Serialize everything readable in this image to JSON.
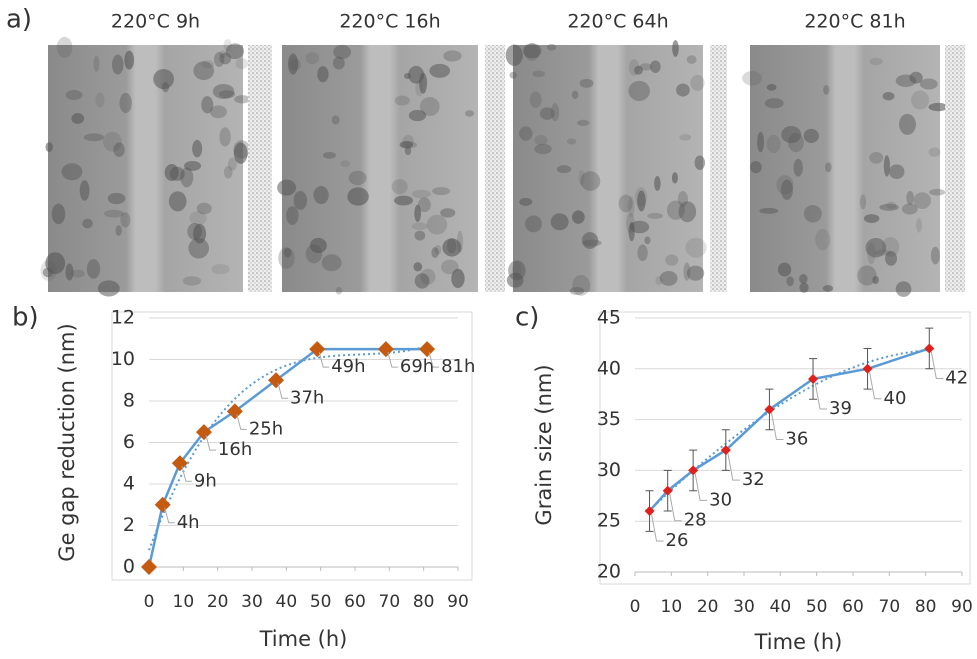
{
  "panel_a": {
    "label": "a)",
    "images": [
      {
        "title": "220°C 9h"
      },
      {
        "title": "220°C 16h"
      },
      {
        "title": "220°C 64h"
      },
      {
        "title": "220°C 81h"
      }
    ]
  },
  "chart_data": [
    {
      "type": "line",
      "label": "b)",
      "x_label": "Time (h)",
      "y_label": "Ge gap reduction (nm)",
      "x": [
        0,
        4,
        9,
        16,
        25,
        37,
        49,
        69,
        81
      ],
      "values": [
        0,
        3,
        5,
        6.5,
        7.5,
        9,
        10.5,
        10.5,
        10.5
      ],
      "point_labels": [
        null,
        "4h",
        "9h",
        "16h",
        "25h",
        "37h",
        "49h",
        "69h",
        "81h"
      ],
      "color": "#5b9bd5",
      "marker": "diamond",
      "marker_color": "#c55a11",
      "trendline": true,
      "xlim": [
        0,
        90
      ],
      "xticks": [
        0,
        10,
        20,
        30,
        40,
        50,
        60,
        70,
        80,
        90
      ],
      "ylim": [
        0,
        12
      ],
      "yticks": [
        0,
        2,
        4,
        6,
        8,
        10,
        12
      ],
      "grid": true
    },
    {
      "type": "line",
      "label": "c)",
      "x_label": "Time (h)",
      "y_label": "Grain size (nm)",
      "x": [
        4,
        9,
        16,
        25,
        37,
        49,
        64,
        81
      ],
      "values": [
        26,
        28,
        30,
        32,
        36,
        39,
        40,
        42
      ],
      "errors": [
        2,
        2,
        2,
        2,
        2,
        2,
        2,
        2
      ],
      "color": "#5b9bd5",
      "marker": "diamond",
      "marker_color": "#e0201b",
      "trendline": true,
      "xlim": [
        0,
        90
      ],
      "xticks": [
        0,
        10,
        20,
        30,
        40,
        50,
        60,
        70,
        80,
        90
      ],
      "ylim": [
        20,
        45
      ],
      "yticks": [
        20,
        25,
        30,
        35,
        40,
        45
      ],
      "grid": true
    }
  ]
}
